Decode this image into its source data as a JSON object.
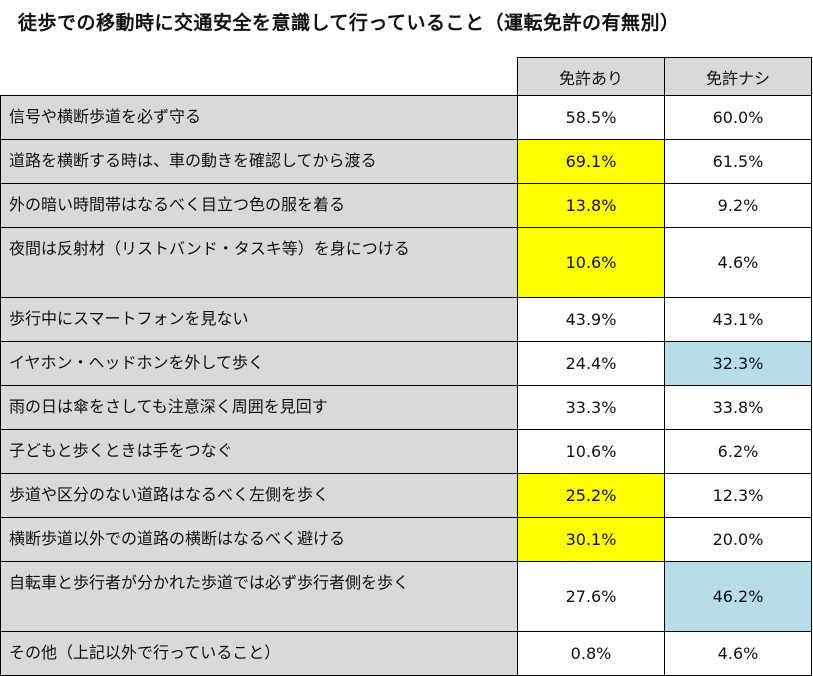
{
  "title": "徒歩での移動時に交通安全を意識して行っていること（運転免許の有無別）",
  "colors": {
    "label_bg": "#d9d9d9",
    "highlight_yellow": "#ffff00",
    "highlight_blue": "#b7dde8"
  },
  "chart_data": {
    "type": "table",
    "columns": [
      "免許あり",
      "免許ナシ"
    ],
    "rows": [
      {
        "label": "信号や横断歩道を必ず守る",
        "values": [
          "58.5%",
          "60.0%"
        ],
        "highlight": [
          "",
          ""
        ]
      },
      {
        "label": "道路を横断する時は、車の動きを確認してから渡る",
        "values": [
          "69.1%",
          "61.5%"
        ],
        "highlight": [
          "yellow",
          ""
        ]
      },
      {
        "label": "外の暗い時間帯はなるべく目立つ色の服を着る",
        "values": [
          "13.8%",
          "9.2%"
        ],
        "highlight": [
          "yellow",
          ""
        ]
      },
      {
        "label": "夜間は反射材（リストバンド・タスキ等）を身につける",
        "values": [
          "10.6%",
          "4.6%"
        ],
        "highlight": [
          "yellow",
          ""
        ]
      },
      {
        "label": "歩行中にスマートフォンを見ない",
        "values": [
          "43.9%",
          "43.1%"
        ],
        "highlight": [
          "",
          ""
        ]
      },
      {
        "label": "イヤホン・ヘッドホンを外して歩く",
        "values": [
          "24.4%",
          "32.3%"
        ],
        "highlight": [
          "",
          "blue"
        ]
      },
      {
        "label": "雨の日は傘をさしても注意深く周囲を見回す",
        "values": [
          "33.3%",
          "33.8%"
        ],
        "highlight": [
          "",
          ""
        ]
      },
      {
        "label": "子どもと歩くときは手をつなぐ",
        "values": [
          "10.6%",
          "6.2%"
        ],
        "highlight": [
          "",
          ""
        ]
      },
      {
        "label": "歩道や区分のない道路はなるべく左側を歩く",
        "values": [
          "25.2%",
          "12.3%"
        ],
        "highlight": [
          "yellow",
          ""
        ]
      },
      {
        "label": "横断歩道以外での道路の横断はなるべく避ける",
        "values": [
          "30.1%",
          "20.0%"
        ],
        "highlight": [
          "yellow",
          ""
        ]
      },
      {
        "label": "自転車と歩行者が分かれた歩道では必ず歩行者側を歩く",
        "values": [
          "27.6%",
          "46.2%"
        ],
        "highlight": [
          "",
          "blue"
        ]
      },
      {
        "label": "その他（上記以外で行っていること）",
        "values": [
          "0.8%",
          "4.6%"
        ],
        "highlight": [
          "",
          ""
        ]
      }
    ]
  }
}
